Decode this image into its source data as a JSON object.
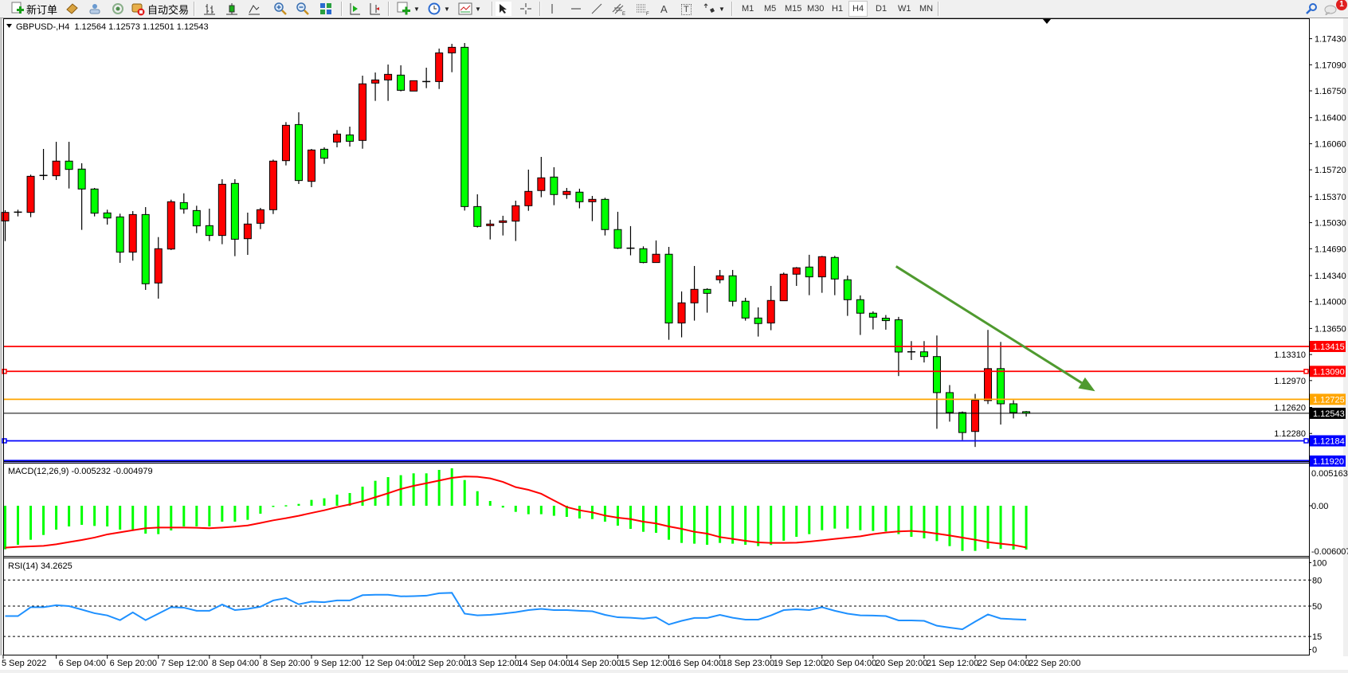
{
  "toolbar": {
    "new_order_label": "新订单",
    "autotrade_label": "自动交易",
    "timeframes": [
      "M1",
      "M5",
      "M15",
      "M30",
      "H1",
      "H4",
      "D1",
      "W1",
      "MN"
    ],
    "active_timeframe": "H4",
    "notification_count": "1",
    "text_tool_label": "A",
    "label_tool_label": "T"
  },
  "chart": {
    "header": "GBPUSD-,H4  1.12564 1.12573 1.12501 1.12543",
    "macd_header": "MACD(12,26,9) -0.005232 -0.004979",
    "rsi_header": "RSI(14) 34.2625",
    "colors": {
      "bull": "#ff0000",
      "bear": "#00ff00",
      "macd_hist": "#00ff00",
      "macd_signal": "#ff0000",
      "rsi": "#1e90ff",
      "arrow": "#4f9a2f"
    }
  },
  "chart_data": {
    "type": "candlestick",
    "symbol": "GBPUSD-",
    "timeframe": "H4",
    "ohlc_header": {
      "open": 1.12564,
      "high": 1.12573,
      "low": 1.12501,
      "close": 1.12543
    },
    "ylim": [
      1.1192,
      1.1774
    ],
    "price_ticks": [
      "1.17430",
      "1.17090",
      "1.16750",
      "1.16400",
      "1.16060",
      "1.15720",
      "1.15370",
      "1.15030",
      "1.14690",
      "1.14340",
      "1.14000",
      "1.13650",
      "1.13310",
      "1.12970",
      "1.12620",
      "1.12280"
    ],
    "time_ticks": [
      {
        "bar": 0,
        "label": "5 Sep 2022"
      },
      {
        "bar": 4,
        "label": "6 Sep 04:00"
      },
      {
        "bar": 8,
        "label": "6 Sep 20:00"
      },
      {
        "bar": 12,
        "label": "7 Sep 12:00"
      },
      {
        "bar": 16,
        "label": "8 Sep 04:00"
      },
      {
        "bar": 20,
        "label": "8 Sep 20:00"
      },
      {
        "bar": 24,
        "label": "9 Sep 12:00"
      },
      {
        "bar": 28,
        "label": "12 Sep 04:00"
      },
      {
        "bar": 32,
        "label": "12 Sep 20:00"
      },
      {
        "bar": 36,
        "label": "13 Sep 12:00"
      },
      {
        "bar": 40,
        "label": "14 Sep 04:00"
      },
      {
        "bar": 44,
        "label": "14 Sep 20:00"
      },
      {
        "bar": 48,
        "label": "15 Sep 12:00"
      },
      {
        "bar": 52,
        "label": "16 Sep 04:00"
      },
      {
        "bar": 56,
        "label": "18 Sep 23:00"
      },
      {
        "bar": 60,
        "label": "19 Sep 12:00"
      },
      {
        "bar": 64,
        "label": "20 Sep 04:00"
      },
      {
        "bar": 68,
        "label": "20 Sep 20:00"
      },
      {
        "bar": 72,
        "label": "21 Sep 12:00"
      },
      {
        "bar": 76,
        "label": "22 Sep 04:00"
      },
      {
        "bar": 80,
        "label": "22 Sep 20:00"
      }
    ],
    "candles_ohlc": [
      [
        1.15053,
        1.15192,
        1.1479,
        1.15164
      ],
      [
        1.15167,
        1.15199,
        1.15112,
        1.15167
      ],
      [
        1.15164,
        1.15656,
        1.15102,
        1.15635
      ],
      [
        1.15646,
        1.15992,
        1.15587,
        1.15646
      ],
      [
        1.15642,
        1.16085,
        1.15587,
        1.15833
      ],
      [
        1.15833,
        1.16085,
        1.15476,
        1.15725
      ],
      [
        1.15729,
        1.15805,
        1.14936,
        1.15469
      ],
      [
        1.15469,
        1.15483,
        1.15112,
        1.15154
      ],
      [
        1.15157,
        1.15199,
        1.15005,
        1.15091
      ],
      [
        1.15105,
        1.15147,
        1.14506,
        1.14645
      ],
      [
        1.14645,
        1.15181,
        1.14534,
        1.15136
      ],
      [
        1.15136,
        1.15233,
        1.14153,
        1.14233
      ],
      [
        1.14243,
        1.14842,
        1.14039,
        1.1469
      ],
      [
        1.14686,
        1.1533,
        1.14673,
        1.15303
      ],
      [
        1.15292,
        1.15413,
        1.15147,
        1.15209
      ],
      [
        1.15188,
        1.15251,
        1.14894,
        1.14988
      ],
      [
        1.14991,
        1.15213,
        1.1479,
        1.14863
      ],
      [
        1.14863,
        1.15597,
        1.14749,
        1.15531
      ],
      [
        1.15542,
        1.15597,
        1.14593,
        1.14814
      ],
      [
        1.14821,
        1.15161,
        1.1461,
        1.15012
      ],
      [
        1.15022,
        1.15223,
        1.14946,
        1.15199
      ],
      [
        1.15199,
        1.15853,
        1.15143,
        1.15833
      ],
      [
        1.15839,
        1.16342,
        1.15777,
        1.163
      ],
      [
        1.1631,
        1.1647,
        1.15535,
        1.1558
      ],
      [
        1.15569,
        1.15992,
        1.15493,
        1.15978
      ],
      [
        1.15988,
        1.16013,
        1.15798,
        1.15871
      ],
      [
        1.16082,
        1.16238,
        1.16013,
        1.16186
      ],
      [
        1.16175,
        1.16283,
        1.16023,
        1.16092
      ],
      [
        1.16103,
        1.16948,
        1.15995,
        1.16841
      ],
      [
        1.16851,
        1.16989,
        1.16619,
        1.16892
      ],
      [
        1.16892,
        1.17093,
        1.16619,
        1.16965
      ],
      [
        1.16955,
        1.17083,
        1.16743,
        1.16757
      ],
      [
        1.16747,
        1.16882,
        1.16747,
        1.16882
      ],
      [
        1.16871,
        1.17052,
        1.16785,
        1.16871
      ],
      [
        1.16871,
        1.17301,
        1.16774,
        1.17245
      ],
      [
        1.17245,
        1.17363,
        1.16993,
        1.17318
      ],
      [
        1.17318,
        1.17374,
        1.15188,
        1.1524
      ],
      [
        1.1524,
        1.154,
        1.14967,
        1.14981
      ],
      [
        1.14992,
        1.15068,
        1.14811,
        1.15012
      ],
      [
        1.15033,
        1.1512,
        1.14863,
        1.15054
      ],
      [
        1.1505,
        1.15317,
        1.14791,
        1.15251
      ],
      [
        1.15251,
        1.15722,
        1.15185,
        1.15438
      ],
      [
        1.15449,
        1.15888,
        1.15362,
        1.15615
      ],
      [
        1.15625,
        1.15753,
        1.15258,
        1.15397
      ],
      [
        1.15397,
        1.15483,
        1.15341,
        1.15438
      ],
      [
        1.15428,
        1.15473,
        1.15217,
        1.15303
      ],
      [
        1.15303,
        1.15379,
        1.1505,
        1.15334
      ],
      [
        1.15334,
        1.15355,
        1.14863,
        1.1494
      ],
      [
        1.1494,
        1.15172,
        1.14687,
        1.14697
      ],
      [
        1.14697,
        1.14985,
        1.14604,
        1.14697
      ],
      [
        1.1469,
        1.14721,
        1.145,
        1.1451
      ],
      [
        1.1451,
        1.14798,
        1.1451,
        1.14618
      ],
      [
        1.14618,
        1.14714,
        1.13502,
        1.13721
      ],
      [
        1.13721,
        1.14133,
        1.13534,
        1.13984
      ],
      [
        1.13984,
        1.14465,
        1.13752,
        1.1416
      ],
      [
        1.1416,
        1.14174,
        1.13856,
        1.14108
      ],
      [
        1.14285,
        1.14413,
        1.1424,
        1.14337
      ],
      [
        1.14337,
        1.14413,
        1.13939,
        1.14005
      ],
      [
        1.14005,
        1.1405,
        1.13752,
        1.13786
      ],
      [
        1.13786,
        1.13925,
        1.13544,
        1.13714
      ],
      [
        1.13721,
        1.14205,
        1.13627,
        1.14015
      ],
      [
        1.14011,
        1.14379,
        1.14011,
        1.14358
      ],
      [
        1.14358,
        1.14451,
        1.14205,
        1.14441
      ],
      [
        1.14451,
        1.14611,
        1.14084,
        1.14323
      ],
      [
        1.14323,
        1.14597,
        1.14115,
        1.14586
      ],
      [
        1.14576,
        1.14597,
        1.14084,
        1.14295
      ],
      [
        1.14285,
        1.1434,
        1.13814,
        1.14025
      ],
      [
        1.14025,
        1.14081,
        1.13565,
        1.13849
      ],
      [
        1.13849,
        1.13873,
        1.13637,
        1.13797
      ],
      [
        1.13784,
        1.13825,
        1.13634,
        1.13752
      ],
      [
        1.13763,
        1.13801,
        1.13029,
        1.13342
      ],
      [
        1.13345,
        1.13485,
        1.13238,
        1.13345
      ],
      [
        1.13345,
        1.13485,
        1.13206,
        1.13283
      ],
      [
        1.13283,
        1.13558,
        1.12341,
        1.12813
      ],
      [
        1.12813,
        1.12911,
        1.12434,
        1.12553
      ],
      [
        1.12553,
        1.12567,
        1.12195,
        1.12292
      ],
      [
        1.12306,
        1.12796,
        1.12104,
        1.12713
      ],
      [
        1.12709,
        1.13631,
        1.12664,
        1.13126
      ],
      [
        1.13126,
        1.13474,
        1.12396,
        1.12667
      ],
      [
        1.12667,
        1.12713,
        1.12476,
        1.12553
      ],
      [
        1.12564,
        1.12573,
        1.12501,
        1.12543
      ]
    ],
    "horizontal_levels": [
      {
        "price": 1.13415,
        "label": "1.13415",
        "color": "#ff0000"
      },
      {
        "price": 1.1309,
        "label": "1.13090",
        "color": "#ff0000"
      },
      {
        "price": 1.12725,
        "label": "1.12725",
        "color": "#ffa500"
      },
      {
        "price": 1.12543,
        "label": "1.12543",
        "color": "#000000"
      },
      {
        "price": 1.12184,
        "label": "1.12184",
        "color": "#0000ff"
      },
      {
        "price": 1.1192,
        "label": "1.11920",
        "color": "#0000ff"
      }
    ],
    "arrow": {
      "from": {
        "bar": 69.8,
        "price": 1.1446
      },
      "to": {
        "bar": 85.4,
        "price": 1.1283
      },
      "color": "#4f9a2f"
    },
    "macd": {
      "params": "12,26,9",
      "ylim": [
        -0.006007,
        0.005163
      ],
      "tick_labels": [
        "0.005163",
        "0.00",
        "-0.006007"
      ],
      "histogram": [
        -0.0052,
        -0.00466,
        -0.00406,
        -0.00349,
        -0.00285,
        -0.00247,
        -0.00228,
        -0.00241,
        -0.00247,
        -0.00285,
        -0.00285,
        -0.00333,
        -0.00339,
        -0.00295,
        -0.00247,
        -0.00247,
        -0.00247,
        -0.0019,
        -0.0019,
        -0.00168,
        -0.00095,
        -6e-05,
        6e-05,
        0.00022,
        0.0007,
        0.00089,
        0.00133,
        0.00152,
        0.00228,
        0.00298,
        0.00342,
        0.00365,
        0.00387,
        0.00387,
        0.00428,
        0.00447,
        0.00307,
        0.00174,
        0.00057,
        -0.00022,
        -0.00073,
        -0.00101,
        -0.00101,
        -0.0012,
        -0.00133,
        -0.00152,
        -0.00159,
        -0.0019,
        -0.00238,
        -0.00276,
        -0.00311,
        -0.00323,
        -0.00406,
        -0.00444,
        -0.00453,
        -0.00466,
        -0.00444,
        -0.00453,
        -0.00466,
        -0.00482,
        -0.00469,
        -0.00418,
        -0.00371,
        -0.00339,
        -0.00292,
        -0.00273,
        -0.00273,
        -0.00292,
        -0.00301,
        -0.00307,
        -0.00339,
        -0.00371,
        -0.0039,
        -0.00422,
        -0.00482,
        -0.00539,
        -0.00539,
        -0.00514,
        -0.00514,
        -0.00523,
        -0.005232
      ],
      "signal": [
        -0.00501,
        -0.00491,
        -0.00485,
        -0.00479,
        -0.0046,
        -0.00434,
        -0.00409,
        -0.0038,
        -0.00342,
        -0.00317,
        -0.00292,
        -0.00269,
        -0.0026,
        -0.0026,
        -0.0026,
        -0.00263,
        -0.00269,
        -0.0026,
        -0.0025,
        -0.00235,
        -0.00206,
        -0.00174,
        -0.00149,
        -0.0012,
        -0.00086,
        -0.00054,
        -0.00016,
        0.00016,
        0.00054,
        0.00101,
        0.00149,
        0.002,
        0.00238,
        0.00269,
        0.00301,
        0.00333,
        0.00349,
        0.00346,
        0.00327,
        0.00285,
        0.00222,
        0.0019,
        0.00143,
        0.00063,
        -0.00016,
        -0.00054,
        -0.00079,
        -0.00117,
        -0.00143,
        -0.00159,
        -0.0019,
        -0.00212,
        -0.00247,
        -0.00276,
        -0.00311,
        -0.00333,
        -0.00374,
        -0.00396,
        -0.00418,
        -0.00437,
        -0.00444,
        -0.00444,
        -0.00441,
        -0.00428,
        -0.00412,
        -0.00396,
        -0.0038,
        -0.00365,
        -0.00339,
        -0.0032,
        -0.00307,
        -0.00301,
        -0.00311,
        -0.00333,
        -0.00355,
        -0.0038,
        -0.00406,
        -0.00434,
        -0.00453,
        -0.00469,
        -0.004979
      ]
    },
    "rsi": {
      "period": 14,
      "ylim": [
        0,
        100
      ],
      "levels": [
        80,
        50,
        15
      ],
      "tick_labels": [
        "100",
        "80",
        "50",
        "15",
        "0"
      ],
      "values": [
        38.5,
        38.5,
        48.7,
        48.7,
        51,
        50,
        46,
        41.8,
        39.3,
        33.8,
        42.7,
        33.8,
        41.3,
        48.7,
        48.2,
        44.6,
        44.6,
        51.8,
        45.4,
        46.8,
        49.3,
        56.5,
        59.3,
        52.1,
        55.1,
        54.5,
        56.5,
        56.5,
        62.6,
        63.1,
        63.1,
        61.2,
        61.5,
        62,
        64.8,
        65.3,
        41.3,
        39.3,
        39.9,
        41.3,
        43,
        45.4,
        46.8,
        45.4,
        45.4,
        44.6,
        44,
        39.9,
        37.1,
        36.6,
        35.5,
        37.1,
        28.8,
        33,
        36.3,
        36.3,
        39.9,
        36.6,
        34.4,
        34.4,
        39.3,
        45.4,
        46.3,
        45.4,
        48.7,
        44.6,
        41.3,
        39.3,
        39.1,
        38.5,
        33.5,
        33.5,
        33,
        27.4,
        25.2,
        23.3,
        32.1,
        40.4,
        35.7,
        34.9,
        34.2625
      ]
    }
  }
}
